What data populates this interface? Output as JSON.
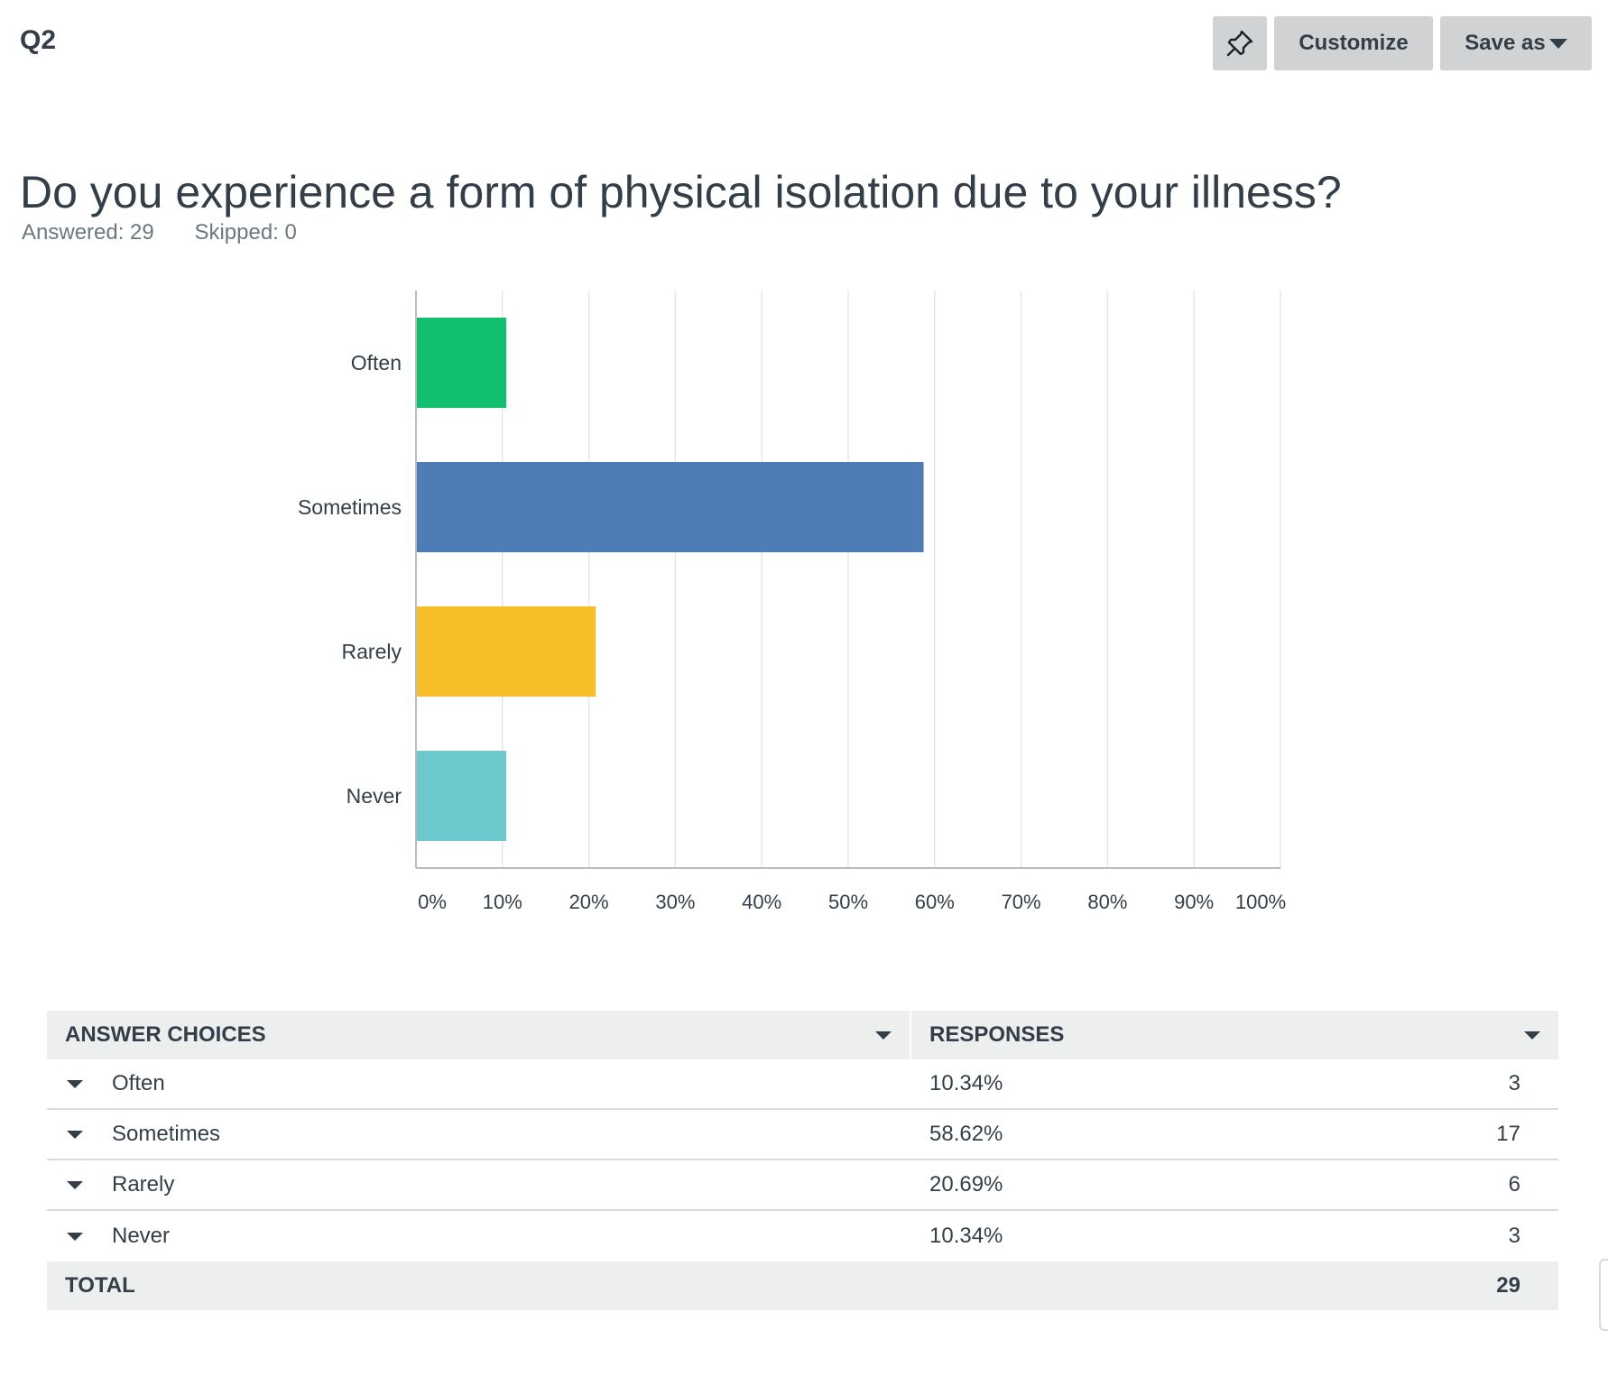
{
  "header": {
    "question_number": "Q2",
    "pin_icon": "pin-icon",
    "customize_label": "Customize",
    "save_as_label": "Save as"
  },
  "question": {
    "title": "Do you experience a form of physical isolation due to your illness?",
    "answered": "Answered: 29",
    "skipped": "Skipped: 0"
  },
  "chart_data": {
    "type": "bar",
    "orientation": "horizontal",
    "categories": [
      "Often",
      "Sometimes",
      "Rarely",
      "Never"
    ],
    "values": [
      10.34,
      58.62,
      20.69,
      10.34
    ],
    "colors": [
      "#12bf6e",
      "#507cb6",
      "#f8be29",
      "#6cc8cc"
    ],
    "xlim": [
      0,
      100
    ],
    "x_ticks": [
      "0%",
      "10%",
      "20%",
      "30%",
      "40%",
      "50%",
      "60%",
      "70%",
      "80%",
      "90%",
      "100%"
    ],
    "grid": true
  },
  "table": {
    "headers": {
      "choices": "ANSWER CHOICES",
      "responses": "RESPONSES"
    },
    "rows": [
      {
        "choice": "Often",
        "percent": "10.34%",
        "count": "3"
      },
      {
        "choice": "Sometimes",
        "percent": "58.62%",
        "count": "17"
      },
      {
        "choice": "Rarely",
        "percent": "20.69%",
        "count": "6"
      },
      {
        "choice": "Never",
        "percent": "10.34%",
        "count": "3"
      }
    ],
    "total_label": "TOTAL",
    "total_value": "29"
  }
}
